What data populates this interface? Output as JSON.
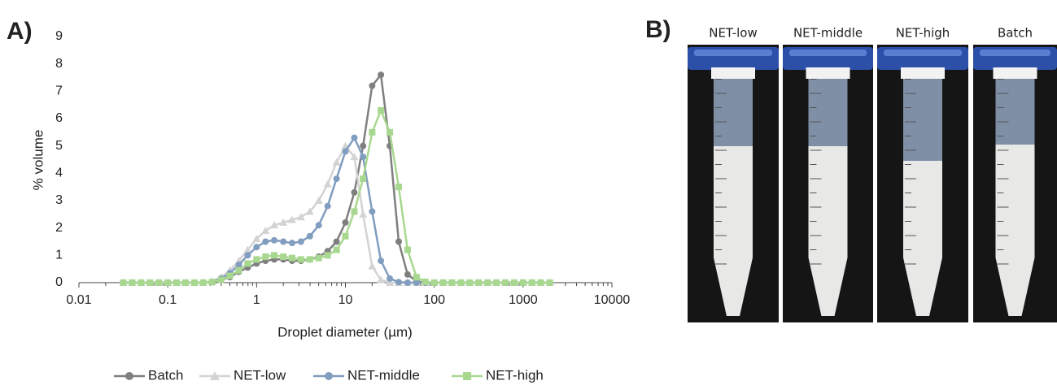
{
  "chart_data": {
    "type": "line",
    "panel_label": "A)",
    "x_label": "Droplet diameter (µm)",
    "y_label": "% volume",
    "log_x": true,
    "xlim": [
      0.01,
      10000
    ],
    "ylim": [
      0,
      9
    ],
    "xticks": [
      0.01,
      0.1,
      1,
      10,
      100,
      1000,
      10000
    ],
    "yticks": [
      0,
      1,
      2,
      3,
      4,
      5,
      6,
      7,
      8,
      9
    ],
    "x": [
      0.0316,
      0.0398,
      0.0501,
      0.0631,
      0.0794,
      0.1,
      0.126,
      0.158,
      0.2,
      0.251,
      0.316,
      0.398,
      0.501,
      0.631,
      0.794,
      1,
      1.26,
      1.58,
      2,
      2.51,
      3.16,
      3.98,
      5.01,
      6.31,
      7.94,
      10,
      12.6,
      15.8,
      20,
      25.1,
      31.6,
      39.8,
      50.1,
      63.1,
      79.4,
      100,
      126,
      158,
      200,
      251,
      316,
      398,
      501,
      631,
      794,
      1000,
      1260,
      1580,
      2000
    ],
    "series": [
      {
        "name": "Batch",
        "color": "#7f7f7f",
        "marker": "circle",
        "values": [
          0,
          0,
          0,
          0,
          0,
          0,
          0,
          0,
          0,
          0,
          0.02,
          0.1,
          0.2,
          0.4,
          0.55,
          0.7,
          0.8,
          0.85,
          0.85,
          0.8,
          0.8,
          0.85,
          0.95,
          1.15,
          1.5,
          2.2,
          3.3,
          5.0,
          7.2,
          7.6,
          5.0,
          1.5,
          0.3,
          0.05,
          0,
          0,
          0,
          0,
          0,
          0,
          0,
          0,
          0,
          0,
          0,
          0,
          0,
          0,
          0
        ]
      },
      {
        "name": "NET-low",
        "color": "#d3d3d3",
        "marker": "triangle",
        "values": [
          0,
          0,
          0,
          0,
          0,
          0,
          0,
          0,
          0,
          0.01,
          0.05,
          0.2,
          0.45,
          0.8,
          1.2,
          1.6,
          1.9,
          2.1,
          2.2,
          2.3,
          2.4,
          2.6,
          3.0,
          3.6,
          4.4,
          5.0,
          4.6,
          2.5,
          0.6,
          0.1,
          0,
          0,
          0,
          0,
          0,
          0,
          0,
          0,
          0,
          0,
          0,
          0,
          0,
          0,
          0,
          0,
          0,
          0,
          0
        ]
      },
      {
        "name": "NET-middle",
        "color": "#819dbf",
        "marker": "circle",
        "values": [
          0,
          0,
          0,
          0,
          0,
          0,
          0,
          0,
          0,
          0,
          0.03,
          0.15,
          0.35,
          0.65,
          1.0,
          1.3,
          1.5,
          1.55,
          1.5,
          1.45,
          1.5,
          1.7,
          2.1,
          2.8,
          3.8,
          4.8,
          5.3,
          4.6,
          2.6,
          0.8,
          0.15,
          0.02,
          0,
          0,
          0,
          0,
          0,
          0,
          0,
          0,
          0,
          0,
          0,
          0,
          0,
          0,
          0,
          0,
          0
        ]
      },
      {
        "name": "NET-high",
        "color": "#a8d88f",
        "marker": "square",
        "values": [
          0,
          0,
          0,
          0,
          0,
          0,
          0,
          0,
          0,
          0,
          0.02,
          0.1,
          0.25,
          0.45,
          0.7,
          0.85,
          0.95,
          1.0,
          0.95,
          0.9,
          0.85,
          0.85,
          0.9,
          1.0,
          1.2,
          1.7,
          2.6,
          3.8,
          5.5,
          6.3,
          5.5,
          3.5,
          1.2,
          0.2,
          0.03,
          0,
          0,
          0,
          0,
          0,
          0,
          0,
          0,
          0,
          0,
          0,
          0,
          0,
          0
        ]
      }
    ]
  },
  "photo": {
    "panel_label": "B)",
    "labels": [
      "NET-low",
      "NET-middle",
      "NET-high",
      "Batch"
    ]
  }
}
